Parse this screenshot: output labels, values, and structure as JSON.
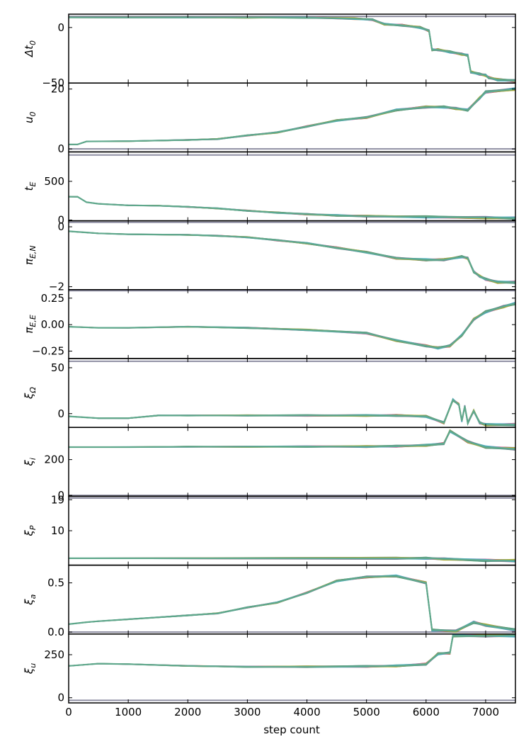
{
  "chart_data": {
    "type": "line",
    "xlabel": "step count",
    "x_range": [
      0,
      7500
    ],
    "x_ticks": [
      0,
      1000,
      2000,
      3000,
      4000,
      5000,
      6000,
      7000
    ],
    "x_tick_labels": [
      "0",
      "1000",
      "2000",
      "3000",
      "4000",
      "5000",
      "6000",
      "7000"
    ],
    "walker_colors": [
      "#1f77b4",
      "#ff7f0e",
      "#2ca02c",
      "#d62728",
      "#9467bd",
      "#8c564b",
      "#e377c2",
      "#7f7f7f",
      "#bcbd22",
      "#17becf",
      "#4c9a8a"
    ],
    "panels": [
      {
        "ylabel_base": "Δt",
        "ylabel_sub": "0",
        "ylim": [
          -50,
          12
        ],
        "yticks": [
          0,
          -50
        ],
        "ytick_labels": [
          "0",
          "−50"
        ],
        "reference_line": 10,
        "trace": [
          [
            0,
            9
          ],
          [
            1000,
            9
          ],
          [
            2000,
            9
          ],
          [
            3000,
            9
          ],
          [
            4000,
            9
          ],
          [
            4800,
            8
          ],
          [
            5100,
            7
          ],
          [
            5300,
            3
          ],
          [
            5600,
            2
          ],
          [
            5900,
            0
          ],
          [
            6050,
            -3
          ],
          [
            6100,
            -20
          ],
          [
            6200,
            -20
          ],
          [
            6400,
            -22
          ],
          [
            6600,
            -24
          ],
          [
            6700,
            -25
          ],
          [
            6750,
            -40
          ],
          [
            6900,
            -42
          ],
          [
            7000,
            -43
          ],
          [
            7050,
            -45
          ],
          [
            7200,
            -47
          ],
          [
            7500,
            -48
          ]
        ]
      },
      {
        "ylabel_base": "u",
        "ylabel_sub": "0",
        "ylim": [
          -1,
          22
        ],
        "yticks": [
          20,
          0
        ],
        "ytick_labels": [
          "20",
          "0"
        ],
        "reference_line": 0,
        "trace": [
          [
            0,
            1.5
          ],
          [
            150,
            1.5
          ],
          [
            300,
            2.5
          ],
          [
            1000,
            2.6
          ],
          [
            2000,
            3
          ],
          [
            2500,
            3.3
          ],
          [
            3000,
            4.5
          ],
          [
            3500,
            5.5
          ],
          [
            4000,
            7.5
          ],
          [
            4500,
            9.5
          ],
          [
            5000,
            10.5
          ],
          [
            5500,
            13
          ],
          [
            6000,
            14
          ],
          [
            6300,
            14
          ],
          [
            6500,
            13.5
          ],
          [
            6700,
            13
          ],
          [
            6900,
            17
          ],
          [
            7000,
            19
          ],
          [
            7500,
            20
          ]
        ]
      },
      {
        "ylabel_base": "t",
        "ylabel_sub": "E",
        "ylim": [
          -10,
          880
        ],
        "yticks": [
          500,
          0
        ],
        "ytick_labels": [
          "500",
          "0"
        ],
        "reference_line": 840,
        "trace": [
          [
            0,
            300
          ],
          [
            150,
            300
          ],
          [
            300,
            230
          ],
          [
            500,
            210
          ],
          [
            1000,
            190
          ],
          [
            1500,
            185
          ],
          [
            2000,
            170
          ],
          [
            2500,
            150
          ],
          [
            3000,
            120
          ],
          [
            3500,
            95
          ],
          [
            4000,
            75
          ],
          [
            4500,
            60
          ],
          [
            5000,
            50
          ],
          [
            6000,
            40
          ],
          [
            7000,
            30
          ],
          [
            7500,
            25
          ]
        ]
      },
      {
        "ylabel_base": "π",
        "ylabel_sub": "E,N",
        "ylim": [
          -2.1,
          0.2
        ],
        "yticks": [
          0,
          -2
        ],
        "ytick_labels": [
          "0",
          "−2"
        ],
        "reference_line": 0.15,
        "trace": [
          [
            0,
            -0.15
          ],
          [
            500,
            -0.22
          ],
          [
            1000,
            -0.25
          ],
          [
            2000,
            -0.27
          ],
          [
            2500,
            -0.3
          ],
          [
            3000,
            -0.35
          ],
          [
            3500,
            -0.45
          ],
          [
            4000,
            -0.55
          ],
          [
            4500,
            -0.7
          ],
          [
            5000,
            -0.85
          ],
          [
            5500,
            -1.05
          ],
          [
            6000,
            -1.1
          ],
          [
            6300,
            -1.1
          ],
          [
            6600,
            -1.0
          ],
          [
            6700,
            -1.05
          ],
          [
            6800,
            -1.5
          ],
          [
            6900,
            -1.65
          ],
          [
            7000,
            -1.75
          ],
          [
            7200,
            -1.85
          ],
          [
            7500,
            -1.85
          ]
        ]
      },
      {
        "ylabel_base": "π",
        "ylabel_sub": "E,E",
        "ylim": [
          -0.32,
          0.33
        ],
        "yticks": [
          0.25,
          0,
          -0.25
        ],
        "ytick_labels": [
          "0.25",
          "0.00",
          "−0.25"
        ],
        "reference_line": 0.32,
        "trace": [
          [
            0,
            -0.02
          ],
          [
            500,
            -0.03
          ],
          [
            1000,
            -0.03
          ],
          [
            2000,
            -0.02
          ],
          [
            3000,
            -0.03
          ],
          [
            4000,
            -0.05
          ],
          [
            5000,
            -0.08
          ],
          [
            5500,
            -0.15
          ],
          [
            6000,
            -0.2
          ],
          [
            6200,
            -0.22
          ],
          [
            6400,
            -0.2
          ],
          [
            6600,
            -0.1
          ],
          [
            6800,
            0.05
          ],
          [
            7000,
            0.12
          ],
          [
            7300,
            0.17
          ],
          [
            7500,
            0.2
          ]
        ]
      },
      {
        "ylabel_base": "ξ",
        "ylabel_sub": "Ω",
        "ylim": [
          -15,
          60
        ],
        "yticks": [
          50,
          0
        ],
        "ytick_labels": [
          "50",
          "0"
        ],
        "reference_line": 57,
        "trace": [
          [
            0,
            -3
          ],
          [
            500,
            -5
          ],
          [
            1000,
            -5
          ],
          [
            1500,
            -2
          ],
          [
            2000,
            -2
          ],
          [
            3000,
            -2
          ],
          [
            4000,
            -2
          ],
          [
            5000,
            -2
          ],
          [
            5500,
            -2
          ],
          [
            6000,
            -3
          ],
          [
            6300,
            -10
          ],
          [
            6450,
            15
          ],
          [
            6550,
            10
          ],
          [
            6600,
            -8
          ],
          [
            6650,
            8
          ],
          [
            6700,
            -10
          ],
          [
            6800,
            3
          ],
          [
            6900,
            -10
          ],
          [
            7000,
            -12
          ],
          [
            7500,
            -12
          ]
        ]
      },
      {
        "ylabel_base": "ξ",
        "ylabel_sub": "i",
        "ylim": [
          -5,
          380
        ],
        "yticks": [
          200,
          0
        ],
        "ytick_labels": [
          "200",
          "0"
        ],
        "reference_line": 0,
        "trace": [
          [
            0,
            270
          ],
          [
            1000,
            270
          ],
          [
            2000,
            272
          ],
          [
            3000,
            272
          ],
          [
            4000,
            273
          ],
          [
            5000,
            273
          ],
          [
            5500,
            275
          ],
          [
            6000,
            280
          ],
          [
            6300,
            290
          ],
          [
            6400,
            360
          ],
          [
            6700,
            300
          ],
          [
            7000,
            270
          ],
          [
            7500,
            260
          ]
        ]
      },
      {
        "ylabel_base": "ξ",
        "ylabel_sub": "P",
        "ylim": [
          0,
          20
        ],
        "yticks": [
          19,
          10
        ],
        "ytick_labels": [
          "19",
          "10"
        ],
        "reference_line": 19.5,
        "trace": [
          [
            0,
            2
          ],
          [
            5500,
            2
          ],
          [
            6000,
            2
          ],
          [
            6300,
            1.8
          ],
          [
            7000,
            1.4
          ],
          [
            7500,
            1.3
          ]
        ]
      },
      {
        "ylabel_base": "ξ",
        "ylabel_sub": "a",
        "ylim": [
          -0.02,
          0.68
        ],
        "yticks": [
          0.5,
          0
        ],
        "ytick_labels": [
          "0.5",
          "0.0"
        ],
        "reference_line": 0,
        "trace": [
          [
            0,
            0.08
          ],
          [
            300,
            0.1
          ],
          [
            500,
            0.11
          ],
          [
            1000,
            0.13
          ],
          [
            2000,
            0.17
          ],
          [
            2500,
            0.19
          ],
          [
            3000,
            0.25
          ],
          [
            3500,
            0.3
          ],
          [
            4000,
            0.4
          ],
          [
            4500,
            0.52
          ],
          [
            5000,
            0.56
          ],
          [
            5500,
            0.57
          ],
          [
            6000,
            0.5
          ],
          [
            6100,
            0.02
          ],
          [
            6500,
            0.01
          ],
          [
            6800,
            0.1
          ],
          [
            7000,
            0.07
          ],
          [
            7500,
            0.02
          ]
        ]
      },
      {
        "ylabel_base": "ξ",
        "ylabel_sub": "u",
        "ylim": [
          -30,
          370
        ],
        "yticks": [
          250,
          0
        ],
        "ytick_labels": [
          "250",
          "0"
        ],
        "reference_line": -15,
        "trace": [
          [
            0,
            185
          ],
          [
            500,
            198
          ],
          [
            1000,
            195
          ],
          [
            2000,
            185
          ],
          [
            3000,
            180
          ],
          [
            4000,
            180
          ],
          [
            5000,
            182
          ],
          [
            5500,
            185
          ],
          [
            6000,
            195
          ],
          [
            6200,
            255
          ],
          [
            6400,
            260
          ],
          [
            6450,
            360
          ],
          [
            7000,
            360
          ],
          [
            7500,
            360
          ]
        ]
      }
    ]
  }
}
